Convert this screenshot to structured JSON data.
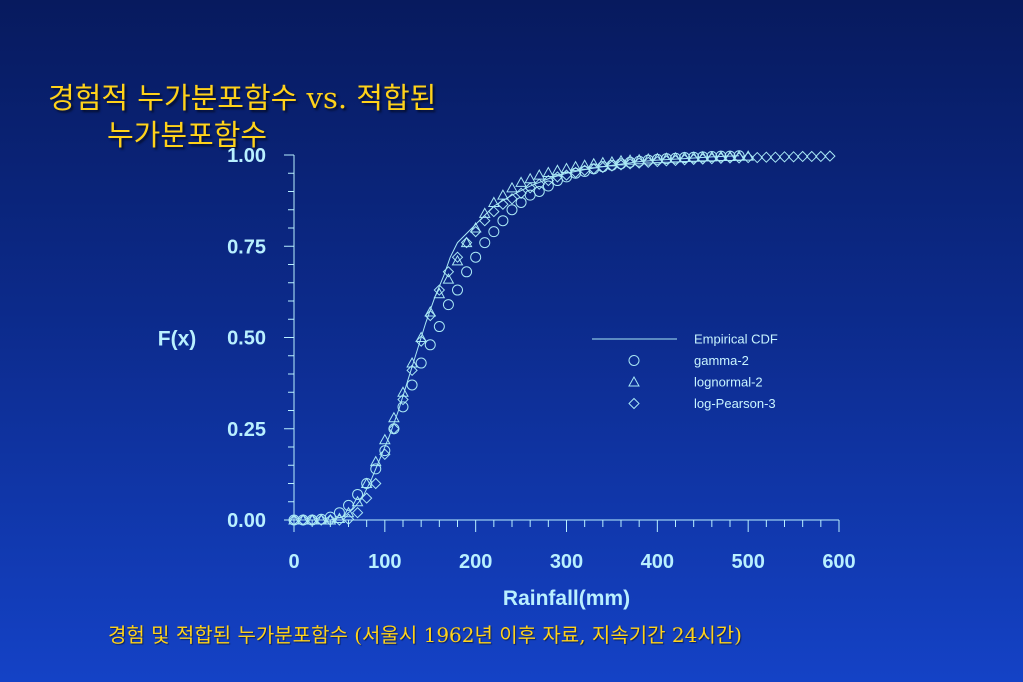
{
  "slide": {
    "title_line1": "경험적 누가분포함수 vs. 적합된",
    "title_line2": "누가분포함수",
    "caption": "경험 및 적합된 누가분포함수 (서울시 1962년 이후 자료, 지속기간 24시간)"
  },
  "colors": {
    "title": "#ffd21a",
    "axis": "#b9f0ff",
    "series": "#a9e8f5"
  },
  "chart_data": {
    "type": "scatter",
    "xlabel": "Rainfall(mm)",
    "ylabel": "F(x)",
    "xlim": [
      0,
      600
    ],
    "ylim": [
      0,
      1
    ],
    "xticks": [
      "0",
      "100",
      "200",
      "300",
      "400",
      "500",
      "600"
    ],
    "yticks": [
      "0.00",
      "0.25",
      "0.50",
      "0.75",
      "1.00"
    ],
    "legend_position": "right",
    "series": [
      {
        "name": "Empirical CDF",
        "marker": "line",
        "x": [
          0,
          40,
          55,
          65,
          75,
          85,
          95,
          105,
          115,
          125,
          135,
          145,
          155,
          165,
          172,
          180,
          200,
          220,
          240,
          260,
          280,
          300,
          320,
          340,
          360,
          380,
          400,
          430,
          460,
          490
        ],
        "y": [
          0.0,
          0.0,
          0.01,
          0.03,
          0.06,
          0.11,
          0.17,
          0.23,
          0.3,
          0.38,
          0.46,
          0.54,
          0.61,
          0.67,
          0.72,
          0.76,
          0.81,
          0.86,
          0.89,
          0.915,
          0.935,
          0.95,
          0.96,
          0.968,
          0.975,
          0.982,
          0.986,
          0.99,
          0.995,
          0.998
        ]
      },
      {
        "name": "gamma-2",
        "marker": "circle",
        "x": [
          0,
          10,
          20,
          30,
          40,
          50,
          60,
          70,
          80,
          90,
          100,
          110,
          120,
          130,
          140,
          150,
          160,
          170,
          180,
          190,
          200,
          210,
          220,
          230,
          240,
          250,
          260,
          270,
          280,
          290,
          300,
          310,
          320,
          330,
          340,
          350,
          360,
          370,
          380,
          390,
          400,
          410,
          420,
          430,
          440,
          450,
          460,
          470,
          480,
          490
        ],
        "y": [
          0.0,
          0.0,
          0.0,
          0.002,
          0.008,
          0.02,
          0.04,
          0.07,
          0.1,
          0.14,
          0.19,
          0.25,
          0.31,
          0.37,
          0.43,
          0.48,
          0.53,
          0.59,
          0.63,
          0.68,
          0.72,
          0.76,
          0.79,
          0.82,
          0.85,
          0.87,
          0.89,
          0.9,
          0.915,
          0.93,
          0.94,
          0.95,
          0.955,
          0.962,
          0.968,
          0.972,
          0.976,
          0.98,
          0.983,
          0.986,
          0.988,
          0.99,
          0.991,
          0.993,
          0.994,
          0.995,
          0.996,
          0.997,
          0.997,
          0.998
        ]
      },
      {
        "name": "lognormal-2",
        "marker": "triangle",
        "x": [
          0,
          10,
          20,
          30,
          40,
          50,
          60,
          70,
          80,
          90,
          100,
          110,
          120,
          130,
          140,
          150,
          160,
          170,
          180,
          190,
          200,
          210,
          220,
          230,
          240,
          250,
          260,
          270,
          280,
          290,
          300,
          310,
          320,
          330,
          340,
          350,
          360,
          370,
          380,
          390,
          400,
          410,
          420,
          430,
          440,
          450,
          460,
          470,
          480,
          490,
          500
        ],
        "y": [
          0.0,
          0.0,
          0.0,
          0.0,
          0.0,
          0.004,
          0.02,
          0.05,
          0.1,
          0.16,
          0.22,
          0.28,
          0.35,
          0.43,
          0.5,
          0.57,
          0.62,
          0.66,
          0.71,
          0.76,
          0.8,
          0.84,
          0.87,
          0.89,
          0.91,
          0.925,
          0.935,
          0.945,
          0.952,
          0.958,
          0.963,
          0.968,
          0.972,
          0.976,
          0.979,
          0.981,
          0.984,
          0.986,
          0.987,
          0.989,
          0.99,
          0.991,
          0.992,
          0.993,
          0.994,
          0.995,
          0.995,
          0.996,
          0.996,
          0.997,
          0.997
        ]
      },
      {
        "name": "log-Pearson-3",
        "marker": "diamond",
        "x": [
          0,
          10,
          20,
          30,
          40,
          50,
          60,
          70,
          80,
          90,
          100,
          110,
          120,
          130,
          140,
          150,
          160,
          170,
          180,
          190,
          200,
          210,
          220,
          230,
          240,
          250,
          260,
          270,
          280,
          290,
          300,
          310,
          320,
          330,
          340,
          350,
          360,
          370,
          380,
          390,
          400,
          410,
          420,
          430,
          440,
          450,
          460,
          470,
          480,
          490,
          500,
          510,
          520,
          530,
          540,
          550,
          560,
          570,
          580,
          590
        ],
        "y": [
          0.0,
          0.0,
          0.0,
          0.0,
          0.0,
          0.0,
          0.002,
          0.02,
          0.06,
          0.1,
          0.18,
          0.25,
          0.33,
          0.41,
          0.49,
          0.56,
          0.63,
          0.68,
          0.72,
          0.76,
          0.79,
          0.82,
          0.845,
          0.865,
          0.88,
          0.895,
          0.91,
          0.92,
          0.93,
          0.94,
          0.945,
          0.952,
          0.958,
          0.962,
          0.966,
          0.97,
          0.973,
          0.976,
          0.978,
          0.98,
          0.982,
          0.984,
          0.985,
          0.987,
          0.988,
          0.989,
          0.99,
          0.991,
          0.992,
          0.992,
          0.993,
          0.993,
          0.994,
          0.994,
          0.995,
          0.995,
          0.996,
          0.996,
          0.996,
          0.997
        ]
      }
    ]
  }
}
